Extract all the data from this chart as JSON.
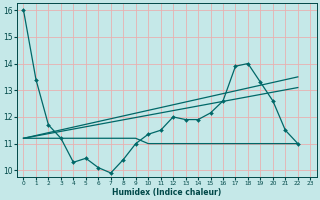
{
  "title": "",
  "xlabel": "Humidex (Indice chaleur)",
  "ylabel": "",
  "bg_color": "#c5e8e8",
  "grid_color": "#e8b0b0",
  "line_color": "#006868",
  "xlim": [
    -0.5,
    23.5
  ],
  "ylim": [
    9.75,
    16.25
  ],
  "yticks": [
    10,
    11,
    12,
    13,
    14,
    15,
    16
  ],
  "xticks": [
    0,
    1,
    2,
    3,
    4,
    5,
    6,
    7,
    8,
    9,
    10,
    11,
    12,
    13,
    14,
    15,
    16,
    17,
    18,
    19,
    20,
    21,
    22,
    23
  ],
  "line1_y": [
    16.0,
    13.4,
    11.7,
    11.2,
    10.3,
    10.45,
    10.1,
    9.9,
    10.4,
    11.0,
    11.35,
    11.5,
    12.0,
    11.9,
    11.9,
    12.15,
    12.6,
    13.9,
    14.0,
    13.3,
    12.6,
    11.5,
    11.0
  ],
  "line2_y": [
    11.2,
    11.2,
    11.2,
    11.2,
    11.2,
    11.2,
    11.2,
    11.2,
    11.2,
    11.2,
    11.0,
    11.0,
    11.0,
    11.0,
    11.0,
    11.0,
    11.0,
    11.0,
    11.0,
    11.0,
    11.0,
    11.0,
    11.0
  ],
  "line3_x": [
    0,
    22
  ],
  "line3_y": [
    11.2,
    13.5
  ],
  "line4_x": [
    0,
    22
  ],
  "line4_y": [
    11.2,
    13.1
  ],
  "tick_color": "#004848",
  "xlabel_fontsize": 5.5,
  "xlabel_bold": true
}
